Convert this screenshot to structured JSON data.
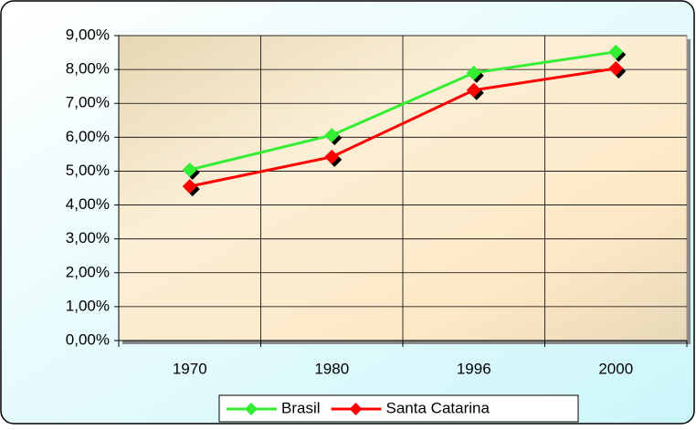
{
  "chart_data": {
    "type": "line",
    "categories": [
      "1970",
      "1980",
      "1996",
      "2000"
    ],
    "series": [
      {
        "name": "Brasil",
        "color": "#33ee33",
        "values": [
          5.04,
          6.06,
          7.9,
          8.52
        ]
      },
      {
        "name": "Santa Catarina",
        "color": "#ff0000",
        "values": [
          4.55,
          5.42,
          7.39,
          8.03
        ]
      }
    ],
    "ylim": [
      0,
      9
    ],
    "yticks": [
      {
        "value": 0,
        "label": "0,00%"
      },
      {
        "value": 1,
        "label": "1,00%"
      },
      {
        "value": 2,
        "label": "2,00%"
      },
      {
        "value": 3,
        "label": "3,00%"
      },
      {
        "value": 4,
        "label": "4,00%"
      },
      {
        "value": 5,
        "label": "5,00%"
      },
      {
        "value": 6,
        "label": "6,00%"
      },
      {
        "value": 7,
        "label": "7,00%"
      },
      {
        "value": 8,
        "label": "8,00%"
      },
      {
        "value": 9,
        "label": "9,00%"
      }
    ],
    "grid": true,
    "legend": "bottom"
  }
}
